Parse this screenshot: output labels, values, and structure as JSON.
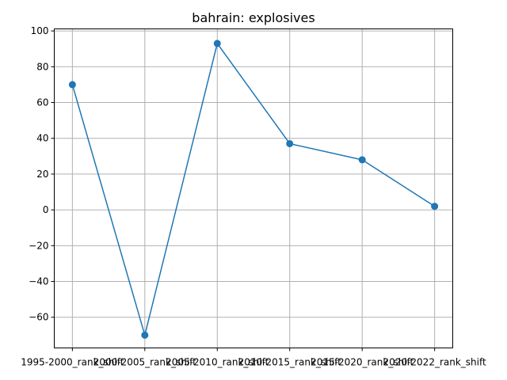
{
  "chart_data": {
    "type": "line",
    "title": "bahrain: explosives",
    "xlabel": "",
    "ylabel": "",
    "categories": [
      "1995-2000_rank_shift",
      "2000-2005_rank_shift",
      "2005-2010_rank_shift",
      "2010-2015_rank_shift",
      "2015-2020_rank_shift",
      "2020-2022_rank_shift"
    ],
    "series": [
      {
        "values": [
          70,
          -70,
          93,
          37,
          28,
          2
        ]
      }
    ],
    "y_ticks": [
      -60,
      -40,
      -20,
      0,
      20,
      40,
      60,
      80,
      100
    ],
    "ylim": [
      -77.15,
      101.15
    ],
    "grid": true,
    "line_color": "#1f77b4"
  }
}
